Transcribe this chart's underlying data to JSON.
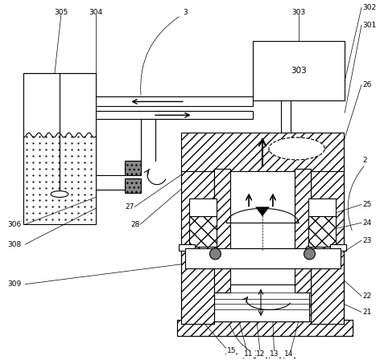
{
  "bg_color": "#ffffff",
  "fig_w": 4.72,
  "fig_h": 4.48,
  "dpi": 100,
  "lw": 0.8,
  "hatch_lw": 0.5,
  "font_size": 6.5
}
